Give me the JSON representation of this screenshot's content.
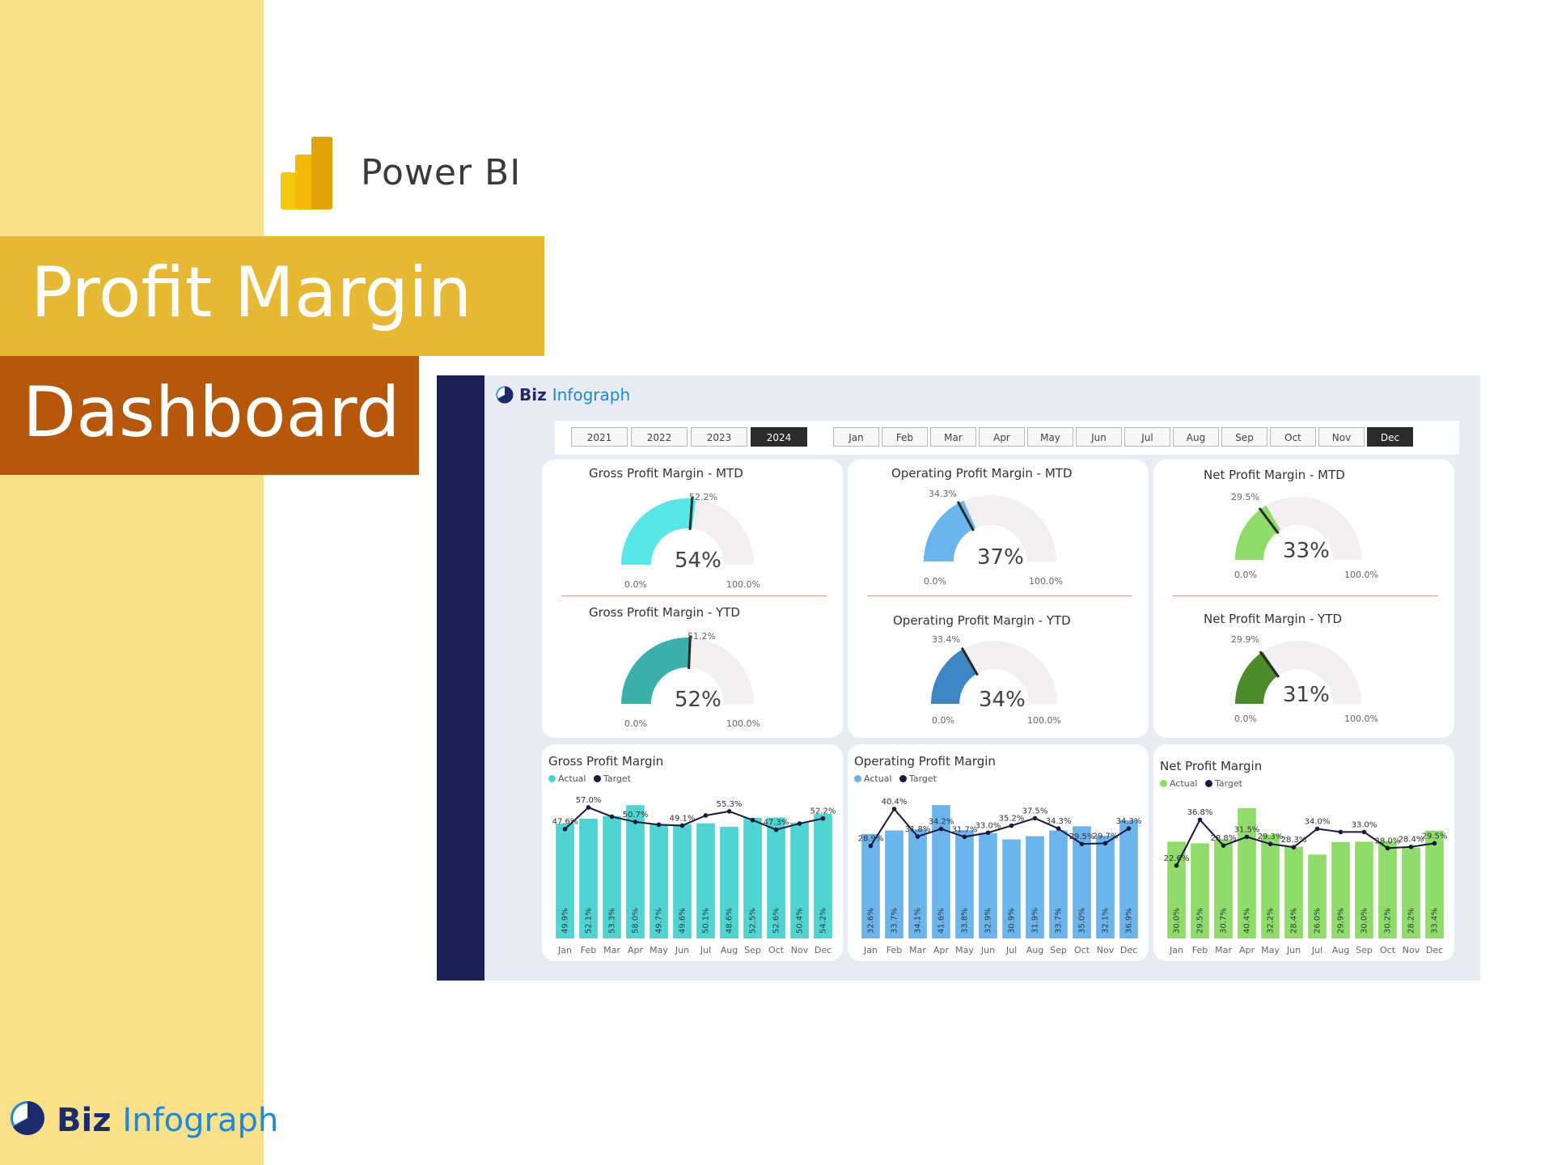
{
  "header": {
    "product_name": "Power BI",
    "title_line1": "Profit Margin",
    "title_line2": "Dashboard"
  },
  "brand": {
    "part1": "Biz",
    "part2": "Infograph"
  },
  "colors": {
    "side_strip": "#f9e08b",
    "title_band1": "#e6b935",
    "title_band2": "#b6580b",
    "nav": "#1b1f55",
    "gross": "#4fd4d2",
    "gross_ytd": "#38b2ad",
    "operating": "#6cb4ec",
    "operating_ytd": "#3f86c4",
    "net": "#8fdc6a",
    "net_ytd": "#4d8a2b",
    "target_line": "#1a1a40"
  },
  "slicers": {
    "years": [
      "2021",
      "2022",
      "2023",
      "2024"
    ],
    "selected_year": "2024",
    "months": [
      "Jan",
      "Feb",
      "Mar",
      "Apr",
      "May",
      "Jun",
      "Jul",
      "Aug",
      "Sep",
      "Oct",
      "Nov",
      "Dec"
    ],
    "selected_month": "Dec"
  },
  "gauges": {
    "gross_mtd": {
      "title": "Gross Profit Margin - MTD",
      "value_label": "54%",
      "value": 0.54,
      "target_label": "52.2%",
      "target": 0.522,
      "min": "0.0%",
      "max": "100.0%",
      "color": "#58e6e6"
    },
    "gross_ytd": {
      "title": "Gross Profit Margin - YTD",
      "value_label": "52%",
      "value": 0.52,
      "target_label": "51.2%",
      "target": 0.512,
      "min": "0.0%",
      "max": "100.0%",
      "color": "#3bb0ab"
    },
    "operating_mtd": {
      "title": "Operating Profit Margin - MTD",
      "value_label": "37%",
      "value": 0.37,
      "target_label": "34.3%",
      "target": 0.343,
      "min": "0.0%",
      "max": "100.0%",
      "color": "#6cb4ec"
    },
    "operating_ytd": {
      "title": "Operating Profit Margin - YTD",
      "value_label": "34%",
      "value": 0.34,
      "target_label": "33.4%",
      "target": 0.334,
      "min": "0.0%",
      "max": "100.0%",
      "color": "#3f86c4"
    },
    "net_mtd": {
      "title": "Net Profit Margin - MTD",
      "value_label": "33%",
      "value": 0.33,
      "target_label": "29.5%",
      "target": 0.295,
      "min": "0.0%",
      "max": "100.0%",
      "color": "#8fdc6a"
    },
    "net_ytd": {
      "title": "Net Profit Margin - YTD",
      "value_label": "31%",
      "value": 0.31,
      "target_label": "29.9%",
      "target": 0.299,
      "min": "0.0%",
      "max": "100.0%",
      "color": "#4d8a2b"
    }
  },
  "legend": {
    "actual": "Actual",
    "target": "Target"
  },
  "chart_data": [
    {
      "type": "bar",
      "title": "Gross Profit Margin",
      "categories": [
        "Jan",
        "Feb",
        "Mar",
        "Apr",
        "May",
        "Jun",
        "Jul",
        "Aug",
        "Sep",
        "Oct",
        "Nov",
        "Dec"
      ],
      "series": [
        {
          "name": "Actual",
          "type": "bar",
          "values": [
            49.9,
            52.1,
            53.3,
            58.0,
            49.7,
            49.6,
            50.1,
            48.6,
            52.5,
            52.6,
            50.4,
            54.2
          ],
          "labels": [
            "49.9%",
            "52.1%",
            "53.3%",
            "58.0%",
            "49.7%",
            "49.6%",
            "50.1%",
            "48.6%",
            "52.5%",
            "52.6%",
            "50.4%",
            "54.2%"
          ]
        },
        {
          "name": "Target",
          "type": "line",
          "values": [
            47.6,
            57.0,
            53.0,
            50.7,
            49.5,
            49.1,
            53.5,
            55.3,
            51.5,
            47.3,
            50.0,
            52.2
          ],
          "labels": [
            "47.6%",
            "57.0%",
            "",
            "50.7%",
            "",
            "49.1%",
            "",
            "55.3%",
            "",
            "47.3%",
            "",
            "52.2%"
          ]
        }
      ]
    },
    {
      "type": "bar",
      "title": "Operating Profit Margin",
      "categories": [
        "Jan",
        "Feb",
        "Mar",
        "Apr",
        "May",
        "Jun",
        "Jul",
        "Aug",
        "Sep",
        "Oct",
        "Nov",
        "Dec"
      ],
      "series": [
        {
          "name": "Actual",
          "type": "bar",
          "values": [
            32.6,
            33.7,
            34.1,
            41.6,
            33.8,
            32.9,
            30.9,
            31.9,
            33.7,
            35.0,
            32.1,
            36.9
          ],
          "labels": [
            "32.6%",
            "33.7%",
            "34.1%",
            "41.6%",
            "33.8%",
            "32.9%",
            "30.9%",
            "31.9%",
            "33.7%",
            "35.0%",
            "32.1%",
            "36.9%"
          ]
        },
        {
          "name": "Target",
          "type": "line",
          "values": [
            28.9,
            40.4,
            31.8,
            34.2,
            31.7,
            33.0,
            35.2,
            37.5,
            34.3,
            29.5,
            29.7,
            34.3
          ],
          "labels": [
            "28.9%",
            "40.4%",
            "31.8%",
            "34.2%",
            "31.7%",
            "33.0%",
            "35.2%",
            "37.5%",
            "34.3%",
            "29.5%",
            "29.7%",
            "34.3%"
          ]
        }
      ]
    },
    {
      "type": "bar",
      "title": "Net Profit Margin",
      "categories": [
        "Jan",
        "Feb",
        "Mar",
        "Apr",
        "May",
        "Jun",
        "Jul",
        "Aug",
        "Sep",
        "Oct",
        "Nov",
        "Dec"
      ],
      "series": [
        {
          "name": "Actual",
          "type": "bar",
          "values": [
            30.0,
            29.5,
            30.7,
            40.4,
            32.2,
            28.4,
            26.0,
            29.9,
            30.0,
            30.2,
            28.2,
            33.4
          ],
          "labels": [
            "30.0%",
            "29.5%",
            "30.7%",
            "40.4%",
            "32.2%",
            "28.4%",
            "26.0%",
            "29.9%",
            "30.0%",
            "30.2%",
            "28.2%",
            "33.4%"
          ]
        },
        {
          "name": "Target",
          "type": "line",
          "values": [
            22.6,
            36.8,
            28.8,
            31.5,
            29.3,
            28.3,
            34.0,
            33.0,
            33.0,
            28.0,
            28.4,
            29.5
          ],
          "labels": [
            "22.6%",
            "36.8%",
            "28.8%",
            "31.5%",
            "29.3%",
            "28.3%",
            "34.0%",
            "",
            "33.0%",
            "28.0%",
            "28.4%",
            "29.5%"
          ]
        }
      ]
    }
  ]
}
